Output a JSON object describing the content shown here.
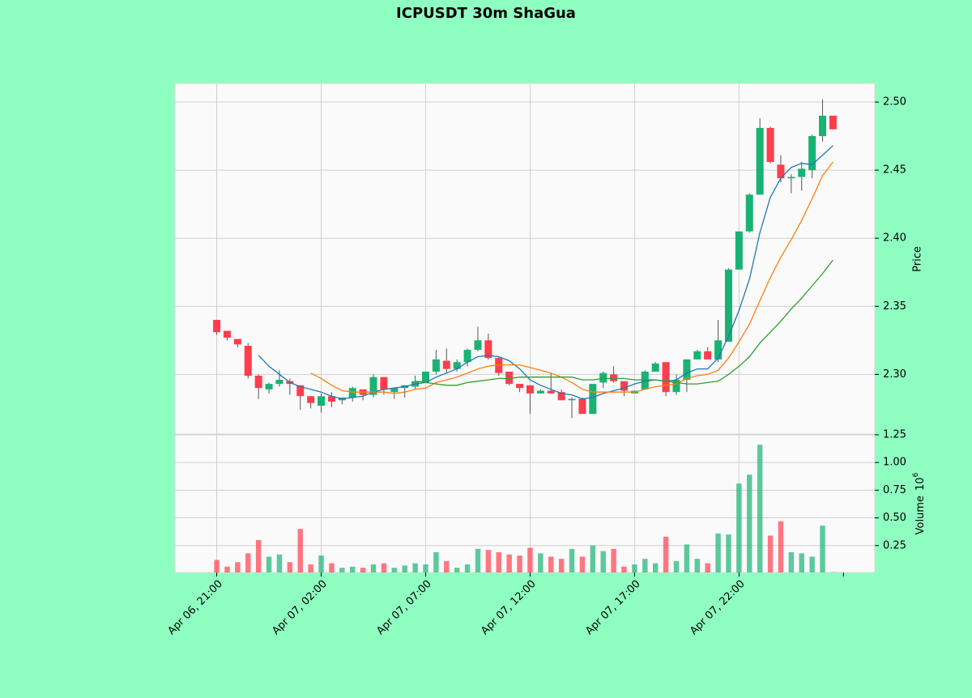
{
  "chart_data": {
    "type": "candlestick",
    "title": "ICPUSDT 30m ShaGua",
    "ylabel": "Price",
    "volume_label": "Volume",
    "volume_multiplier": "10",
    "volume_exponent": "6",
    "up_color": "#18b374",
    "down_color": "#ff3d4d",
    "grid": true,
    "xlim": [
      -4,
      63
    ],
    "xticks": [
      {
        "value": 0,
        "label": "Apr 06, 21:00"
      },
      {
        "value": 10,
        "label": "Apr 07, 02:00"
      },
      {
        "value": 20,
        "label": "Apr 07, 07:00"
      },
      {
        "value": 30,
        "label": "Apr 07, 12:00"
      },
      {
        "value": 40,
        "label": "Apr 07, 17:00"
      },
      {
        "value": 50,
        "label": "Apr 07, 22:00"
      },
      {
        "value": 60,
        "label": null
      }
    ],
    "ylim": [
      2.2562,
      2.5137
    ],
    "yticks": [
      {
        "value": 2.3,
        "label": "2.30"
      },
      2.35,
      {
        "value": 2.4,
        "label": "2.40"
      },
      2.45,
      {
        "value": 2.5,
        "label": "2.50"
      }
    ],
    "volume_ylim": [
      0.007,
      1.257
    ],
    "volume_yticks": [
      0.25,
      {
        "value": 0.5,
        "label": "0.50"
      },
      0.75,
      {
        "value": 1.0,
        "label": "1.00"
      },
      1.25
    ],
    "open": [
      2.34,
      2.332,
      2.326,
      2.321,
      2.299,
      2.289,
      2.293,
      2.295,
      2.292,
      2.284,
      2.277,
      2.284,
      2.281,
      2.283,
      2.289,
      2.285,
      2.298,
      2.287,
      2.29,
      2.291,
      2.294,
      2.302,
      2.31,
      2.304,
      2.309,
      2.318,
      2.325,
      2.312,
      2.302,
      2.293,
      2.292,
      2.286,
      2.288,
      2.287,
      2.281,
      2.282,
      2.271,
      2.294,
      2.3,
      2.295,
      2.286,
      2.289,
      2.302,
      2.309,
      2.287,
      2.296,
      2.311,
      2.317,
      2.311,
      2.324,
      2.377,
      2.405,
      2.432,
      2.481,
      2.454,
      2.444,
      2.445,
      2.45,
      2.475,
      2.49
    ],
    "high": [
      2.34,
      2.332,
      2.326,
      2.323,
      2.3,
      2.294,
      2.303,
      2.297,
      2.292,
      2.284,
      2.286,
      2.287,
      2.283,
      2.291,
      2.289,
      2.3,
      2.298,
      2.29,
      2.292,
      2.299,
      2.302,
      2.318,
      2.319,
      2.311,
      2.319,
      2.335,
      2.33,
      2.313,
      2.302,
      2.293,
      2.292,
      2.289,
      2.301,
      2.289,
      2.283,
      2.283,
      2.293,
      2.302,
      2.306,
      2.295,
      2.288,
      2.303,
      2.309,
      2.309,
      2.3,
      2.311,
      2.318,
      2.32,
      2.34,
      2.378,
      2.405,
      2.433,
      2.488,
      2.482,
      2.461,
      2.447,
      2.456,
      2.476,
      2.502,
      2.49
    ],
    "low": [
      2.329,
      2.325,
      2.32,
      2.297,
      2.282,
      2.286,
      2.291,
      2.285,
      2.274,
      2.275,
      2.272,
      2.276,
      2.278,
      2.28,
      2.281,
      2.283,
      2.285,
      2.282,
      2.283,
      2.289,
      2.294,
      2.3,
      2.301,
      2.302,
      2.306,
      2.317,
      2.311,
      2.299,
      2.292,
      2.287,
      2.271,
      2.286,
      2.286,
      2.281,
      2.268,
      2.271,
      2.271,
      2.29,
      2.294,
      2.284,
      2.286,
      2.289,
      2.302,
      2.284,
      2.285,
      2.287,
      2.311,
      2.311,
      2.309,
      2.324,
      2.377,
      2.404,
      2.432,
      2.455,
      2.441,
      2.433,
      2.435,
      2.444,
      2.471,
      2.48
    ],
    "close": [
      2.331,
      2.327,
      2.322,
      2.299,
      2.29,
      2.293,
      2.296,
      2.293,
      2.284,
      2.279,
      2.284,
      2.28,
      2.283,
      2.29,
      2.285,
      2.298,
      2.289,
      2.29,
      2.292,
      2.295,
      2.302,
      2.311,
      2.304,
      2.309,
      2.318,
      2.325,
      2.312,
      2.301,
      2.293,
      2.29,
      2.286,
      2.288,
      2.286,
      2.281,
      2.282,
      2.271,
      2.293,
      2.301,
      2.295,
      2.288,
      2.288,
      2.302,
      2.308,
      2.287,
      2.296,
      2.311,
      2.317,
      2.311,
      2.325,
      2.377,
      2.405,
      2.432,
      2.481,
      2.456,
      2.444,
      2.445,
      2.451,
      2.475,
      2.49,
      2.48
    ],
    "volume": [
      0.12,
      0.06,
      0.1,
      0.18,
      0.3,
      0.15,
      0.17,
      0.1,
      0.4,
      0.08,
      0.16,
      0.09,
      0.05,
      0.06,
      0.05,
      0.08,
      0.09,
      0.05,
      0.07,
      0.09,
      0.08,
      0.19,
      0.11,
      0.05,
      0.08,
      0.22,
      0.21,
      0.19,
      0.17,
      0.16,
      0.23,
      0.18,
      0.15,
      0.13,
      0.22,
      0.15,
      0.25,
      0.2,
      0.22,
      0.06,
      0.08,
      0.13,
      0.09,
      0.33,
      0.11,
      0.26,
      0.13,
      0.09,
      0.36,
      0.35,
      0.81,
      0.89,
      1.16,
      0.34,
      0.47,
      0.19,
      0.18,
      0.15,
      0.43,
      0.01
    ],
    "moving_averages": [
      {
        "color": "#1f77b4",
        "values": [
          null,
          null,
          null,
          null,
          2.314,
          2.306,
          2.3,
          2.294,
          2.291,
          2.289,
          2.287,
          2.284,
          2.282,
          2.283,
          2.284,
          2.287,
          2.289,
          2.29,
          2.291,
          2.293,
          2.294,
          2.298,
          2.301,
          2.304,
          2.309,
          2.313,
          2.314,
          2.313,
          2.31,
          2.304,
          2.296,
          2.292,
          2.289,
          2.286,
          2.285,
          2.282,
          2.283,
          2.286,
          2.288,
          2.29,
          2.293,
          2.295,
          2.296,
          2.295,
          2.296,
          2.301,
          2.304,
          2.304,
          2.312,
          2.328,
          2.347,
          2.37,
          2.404,
          2.43,
          2.444,
          2.452,
          2.455,
          2.454,
          2.461,
          2.468
        ]
      },
      {
        "color": "#ff7f0e",
        "values": [
          null,
          null,
          null,
          null,
          null,
          null,
          null,
          null,
          null,
          2.301,
          2.297,
          2.292,
          2.288,
          2.287,
          2.287,
          2.287,
          2.287,
          2.286,
          2.287,
          2.289,
          2.29,
          2.294,
          2.296,
          2.298,
          2.301,
          2.304,
          2.306,
          2.307,
          2.307,
          2.307,
          2.305,
          2.303,
          2.301,
          2.298,
          2.294,
          2.289,
          2.287,
          2.287,
          2.287,
          2.287,
          2.287,
          2.289,
          2.291,
          2.292,
          2.293,
          2.297,
          2.299,
          2.3,
          2.303,
          2.312,
          2.324,
          2.337,
          2.354,
          2.371,
          2.386,
          2.399,
          2.413,
          2.429,
          2.446,
          2.456
        ]
      },
      {
        "color": "#2ca02c",
        "values": [
          null,
          null,
          null,
          null,
          null,
          null,
          null,
          null,
          null,
          null,
          null,
          null,
          null,
          null,
          null,
          null,
          null,
          null,
          null,
          2.295,
          2.294,
          2.293,
          2.292,
          2.292,
          2.294,
          2.295,
          2.296,
          2.297,
          2.297,
          2.298,
          2.298,
          2.298,
          2.298,
          2.298,
          2.298,
          2.296,
          2.296,
          2.297,
          2.297,
          2.297,
          2.296,
          2.296,
          2.296,
          2.295,
          2.294,
          2.293,
          2.293,
          2.294,
          2.295,
          2.3,
          2.306,
          2.313,
          2.323,
          2.331,
          2.339,
          2.348,
          2.356,
          2.365,
          2.374,
          2.384
        ]
      }
    ]
  }
}
